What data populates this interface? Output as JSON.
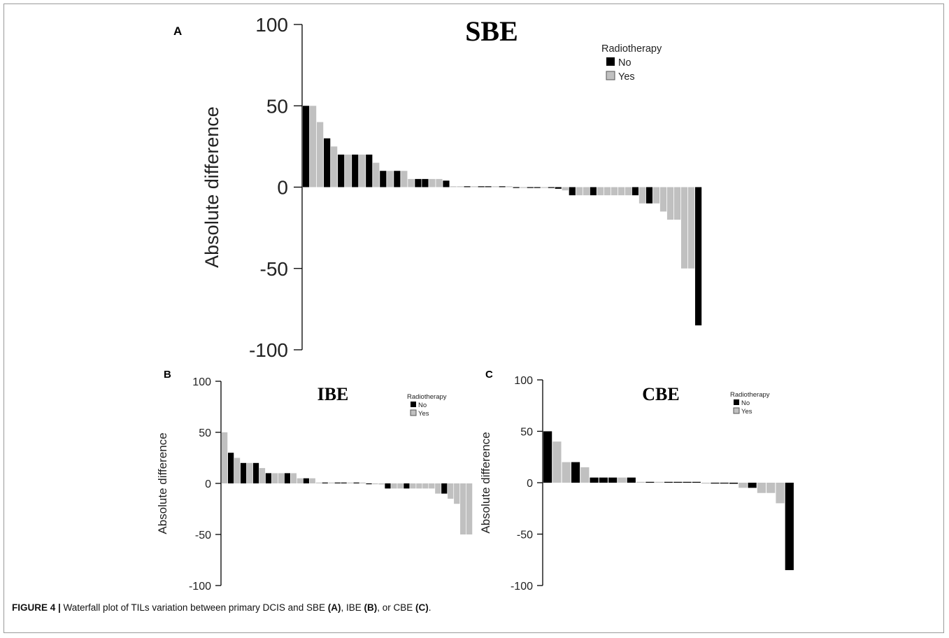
{
  "caption": {
    "label": "FIGURE 4 |",
    "text_before": " Waterfall plot of TILs variation between primary DCIS and SBE ",
    "ref_a": "(A)",
    "sep1": ", IBE ",
    "ref_b": "(B)",
    "sep2": ", or CBE ",
    "ref_c": "(C)",
    "end": "."
  },
  "colors": {
    "no": "#000000",
    "yes": "#c0c0c0"
  },
  "chart_data": [
    {
      "type": "bar",
      "panel": "A",
      "title": "SBE",
      "ylabel": "Absolute difference",
      "ylim": [
        -100,
        100
      ],
      "yticks": [
        100,
        50,
        0,
        -50,
        -100
      ],
      "legend": {
        "title": "Radiotherapy",
        "entries": [
          "No",
          "Yes"
        ],
        "placement": "top-right"
      },
      "series": [
        {
          "name": "No",
          "values": [
            50,
            30,
            20,
            20,
            20,
            10,
            5,
            5,
            4,
            -0.3,
            -0.3,
            -0.3,
            -0.3,
            -0.3,
            -0.3,
            -0.3,
            -0.3,
            -1,
            -5,
            -5,
            -5,
            -10,
            -85
          ]
        },
        {
          "name": "Yes",
          "values": [
            50,
            40,
            25,
            20,
            15,
            10,
            10,
            5,
            5,
            -0.3,
            -0.3,
            -0.3,
            -0.3,
            -0.3,
            -0.3,
            -0.3,
            -0.3,
            -5,
            -5,
            -5,
            -5,
            -5,
            -5,
            -5,
            -10,
            -10,
            -15,
            -20,
            -50,
            -50
          ]
        }
      ],
      "bars": [
        {
          "v": 50,
          "g": "No"
        },
        {
          "v": 50,
          "g": "Yes"
        },
        {
          "v": 40,
          "g": "Yes"
        },
        {
          "v": 30,
          "g": "No"
        },
        {
          "v": 25,
          "g": "Yes"
        },
        {
          "v": 20,
          "g": "No"
        },
        {
          "v": 20,
          "g": "Yes"
        },
        {
          "v": 20,
          "g": "No"
        },
        {
          "v": 20,
          "g": "Yes"
        },
        {
          "v": 20,
          "g": "No"
        },
        {
          "v": 15,
          "g": "Yes"
        },
        {
          "v": 10,
          "g": "No"
        },
        {
          "v": 10,
          "g": "Yes"
        },
        {
          "v": 10,
          "g": "No"
        },
        {
          "v": 10,
          "g": "Yes"
        },
        {
          "v": 5,
          "g": "Yes"
        },
        {
          "v": 5,
          "g": "No"
        },
        {
          "v": 5,
          "g": "No"
        },
        {
          "v": 5,
          "g": "Yes"
        },
        {
          "v": 5,
          "g": "Yes"
        },
        {
          "v": 4,
          "g": "No"
        },
        {
          "v": 0.5,
          "g": "Yes"
        },
        {
          "v": 0.5,
          "g": "Yes"
        },
        {
          "v": 0.5,
          "g": "No"
        },
        {
          "v": 0.5,
          "g": "Yes"
        },
        {
          "v": 0.5,
          "g": "No"
        },
        {
          "v": 0.5,
          "g": "No"
        },
        {
          "v": 0.5,
          "g": "Yes"
        },
        {
          "v": 0.5,
          "g": "No"
        },
        {
          "v": 0.5,
          "g": "Yes"
        },
        {
          "v": -0.5,
          "g": "No"
        },
        {
          "v": -0.5,
          "g": "Yes"
        },
        {
          "v": -0.5,
          "g": "No"
        },
        {
          "v": -0.5,
          "g": "No"
        },
        {
          "v": -0.5,
          "g": "Yes"
        },
        {
          "v": -0.5,
          "g": "No"
        },
        {
          "v": -1,
          "g": "No"
        },
        {
          "v": -2,
          "g": "Yes"
        },
        {
          "v": -5,
          "g": "No"
        },
        {
          "v": -5,
          "g": "Yes"
        },
        {
          "v": -5,
          "g": "Yes"
        },
        {
          "v": -5,
          "g": "No"
        },
        {
          "v": -5,
          "g": "Yes"
        },
        {
          "v": -5,
          "g": "Yes"
        },
        {
          "v": -5,
          "g": "Yes"
        },
        {
          "v": -5,
          "g": "Yes"
        },
        {
          "v": -5,
          "g": "Yes"
        },
        {
          "v": -5,
          "g": "No"
        },
        {
          "v": -10,
          "g": "Yes"
        },
        {
          "v": -10,
          "g": "No"
        },
        {
          "v": -10,
          "g": "Yes"
        },
        {
          "v": -15,
          "g": "Yes"
        },
        {
          "v": -20,
          "g": "Yes"
        },
        {
          "v": -20,
          "g": "Yes"
        },
        {
          "v": -50,
          "g": "Yes"
        },
        {
          "v": -50,
          "g": "Yes"
        },
        {
          "v": -85,
          "g": "No"
        }
      ]
    },
    {
      "type": "bar",
      "panel": "B",
      "title": "IBE",
      "ylabel": "Absolute difference",
      "ylim": [
        -100,
        100
      ],
      "yticks": [
        100,
        50,
        0,
        -50,
        -100
      ],
      "legend": {
        "title": "Radiotherapy",
        "entries": [
          "No",
          "Yes"
        ],
        "placement": "top-right"
      },
      "bars": [
        {
          "v": 50,
          "g": "Yes"
        },
        {
          "v": 30,
          "g": "No"
        },
        {
          "v": 25,
          "g": "Yes"
        },
        {
          "v": 20,
          "g": "No"
        },
        {
          "v": 20,
          "g": "Yes"
        },
        {
          "v": 20,
          "g": "No"
        },
        {
          "v": 15,
          "g": "Yes"
        },
        {
          "v": 10,
          "g": "No"
        },
        {
          "v": 10,
          "g": "Yes"
        },
        {
          "v": 10,
          "g": "Yes"
        },
        {
          "v": 10,
          "g": "No"
        },
        {
          "v": 10,
          "g": "Yes"
        },
        {
          "v": 5,
          "g": "Yes"
        },
        {
          "v": 5,
          "g": "No"
        },
        {
          "v": 5,
          "g": "Yes"
        },
        {
          "v": 0.5,
          "g": "Yes"
        },
        {
          "v": 0.5,
          "g": "No"
        },
        {
          "v": 0.5,
          "g": "Yes"
        },
        {
          "v": 0.5,
          "g": "No"
        },
        {
          "v": 0.5,
          "g": "No"
        },
        {
          "v": 0.5,
          "g": "Yes"
        },
        {
          "v": 0.5,
          "g": "No"
        },
        {
          "v": 0.5,
          "g": "Yes"
        },
        {
          "v": -0.5,
          "g": "No"
        },
        {
          "v": -0.5,
          "g": "Yes"
        },
        {
          "v": -1,
          "g": "Yes"
        },
        {
          "v": -5,
          "g": "No"
        },
        {
          "v": -5,
          "g": "Yes"
        },
        {
          "v": -5,
          "g": "Yes"
        },
        {
          "v": -5,
          "g": "No"
        },
        {
          "v": -5,
          "g": "Yes"
        },
        {
          "v": -5,
          "g": "Yes"
        },
        {
          "v": -5,
          "g": "Yes"
        },
        {
          "v": -5,
          "g": "Yes"
        },
        {
          "v": -10,
          "g": "Yes"
        },
        {
          "v": -10,
          "g": "No"
        },
        {
          "v": -15,
          "g": "Yes"
        },
        {
          "v": -20,
          "g": "Yes"
        },
        {
          "v": -50,
          "g": "Yes"
        },
        {
          "v": -50,
          "g": "Yes"
        }
      ]
    },
    {
      "type": "bar",
      "panel": "C",
      "title": "CBE",
      "ylabel": "Absolute difference",
      "ylim": [
        -100,
        100
      ],
      "yticks": [
        100,
        50,
        0,
        -50,
        -100
      ],
      "legend": {
        "title": "Radiotherapy",
        "entries": [
          "No",
          "Yes"
        ],
        "placement": "top-right"
      },
      "bars": [
        {
          "v": 50,
          "g": "No"
        },
        {
          "v": 40,
          "g": "Yes"
        },
        {
          "v": 20,
          "g": "Yes"
        },
        {
          "v": 20,
          "g": "No"
        },
        {
          "v": 15,
          "g": "Yes"
        },
        {
          "v": 5,
          "g": "No"
        },
        {
          "v": 5,
          "g": "No"
        },
        {
          "v": 5,
          "g": "No"
        },
        {
          "v": 5,
          "g": "Yes"
        },
        {
          "v": 5,
          "g": "No"
        },
        {
          "v": 0.5,
          "g": "Yes"
        },
        {
          "v": 0.5,
          "g": "No"
        },
        {
          "v": 0.5,
          "g": "Yes"
        },
        {
          "v": 0.5,
          "g": "No"
        },
        {
          "v": 0.5,
          "g": "No"
        },
        {
          "v": 0.5,
          "g": "No"
        },
        {
          "v": 0.5,
          "g": "No"
        },
        {
          "v": -0.5,
          "g": "Yes"
        },
        {
          "v": -0.5,
          "g": "No"
        },
        {
          "v": -0.5,
          "g": "No"
        },
        {
          "v": -1,
          "g": "No"
        },
        {
          "v": -5,
          "g": "Yes"
        },
        {
          "v": -5,
          "g": "No"
        },
        {
          "v": -10,
          "g": "Yes"
        },
        {
          "v": -10,
          "g": "Yes"
        },
        {
          "v": -20,
          "g": "Yes"
        },
        {
          "v": -85,
          "g": "No"
        }
      ]
    }
  ]
}
